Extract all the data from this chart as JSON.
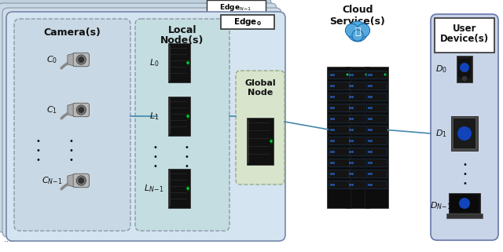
{
  "fig_width": 6.4,
  "fig_height": 3.21,
  "bg_color": "#ffffff",
  "panel_colors": {
    "camera_box": "#c8d8e4",
    "local_box": "#c4dde0",
    "global_box": "#d8e4cc",
    "edge0_panel": "#d4e4f0",
    "user_box": "#c8d4e8"
  },
  "stack_colors": [
    "#c0d0dc",
    "#c8d8e4",
    "#d0dce8"
  ],
  "labels": {
    "camera_title": "Camera(s)",
    "local_title_1": "Local",
    "local_title_2": "Node(s)",
    "edge0_title": "Edge",
    "edge0_sub": "0",
    "edgeN_title": "Edge",
    "edgeN_sub": "N-1",
    "global_title_1": "Global",
    "global_title_2": "Node",
    "cloud_title_1": "Cloud",
    "cloud_title_2": "Service(s)",
    "user_title_1": "User",
    "user_title_2": "Device(s)",
    "C0": "C",
    "C0_sub": "0",
    "C1": "C",
    "C1_sub": "1",
    "CN": "C",
    "CN_sub": "N-1",
    "L0": "L",
    "L0_sub": "0",
    "L1": "L",
    "L1_sub": "1",
    "LN": "L",
    "LN_sub": "N-1",
    "D0": "D",
    "D0_sub": "0",
    "D1": "D",
    "D1_sub": "1",
    "DN": "D",
    "DN_sub": "N-1",
    "dots": "⋯"
  },
  "conn_color": "#4488aa"
}
